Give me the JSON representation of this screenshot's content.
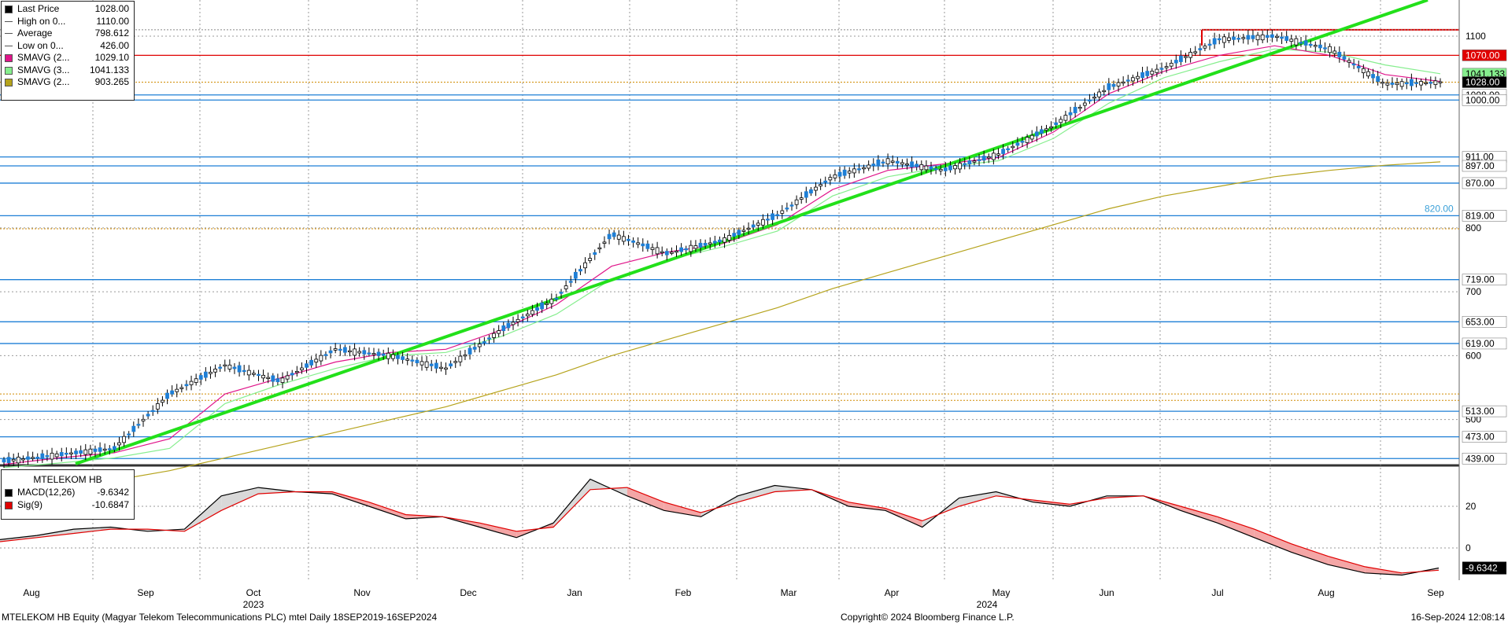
{
  "legend_main": [
    {
      "label": "Last Price",
      "value": "1028.00",
      "color": "#000000",
      "kind": "box"
    },
    {
      "label": "High on 0...",
      "value": "1110.00",
      "color": "#000000",
      "kind": "high"
    },
    {
      "label": "Average",
      "value": "798.612",
      "color": "#000000",
      "kind": "avg"
    },
    {
      "label": "Low on 0...",
      "value": "426.00",
      "color": "#000000",
      "kind": "low"
    },
    {
      "label": "SMAVG (2...",
      "value": "1029.10",
      "color": "#e0158a",
      "kind": "box"
    },
    {
      "label": "SMAVG (3...",
      "value": "1041.133",
      "color": "#86ee8e",
      "kind": "box"
    },
    {
      "label": "SMAVG (2...",
      "value": "903.265",
      "color": "#b5a31c",
      "kind": "box"
    }
  ],
  "legend_macd": {
    "title": "MTELEKOM HB",
    "rows": [
      {
        "label": "MACD(12,26)",
        "value": "-9.6342",
        "color": "#000000"
      },
      {
        "label": "Sig(9)",
        "value": "-10.6847",
        "color": "#e00000"
      }
    ]
  },
  "footer": {
    "left": "MTELEKOM HB Equity (Magyar Telekom Telecommunications PLC) mtel  Daily 18SEP2019-16SEP2024",
    "center": "Copyright© 2024 Bloomberg Finance L.P.",
    "right": "16-Sep-2024 12:08:14"
  },
  "chart_data": [
    {
      "type": "candlestick",
      "title": "",
      "x_tick_labels": [
        "Aug",
        "Sep",
        "Oct",
        "Nov",
        "Dec",
        "Jan",
        "Feb",
        "Mar",
        "Apr",
        "May",
        "Jun",
        "Jul",
        "Aug",
        "Sep"
      ],
      "x_year_labels": [
        {
          "label": "2023",
          "near": "Oct"
        },
        {
          "label": "2024",
          "near": "May"
        }
      ],
      "y_tick_labels": [
        "1100",
        "800",
        "700",
        "600",
        "500"
      ],
      "ylim": [
        420,
        1150
      ],
      "price_tags": [
        {
          "value": 1070.0,
          "label": "1070.00",
          "bg": "#e00000",
          "fg": "#ffffff"
        },
        {
          "value": 1041.133,
          "label": "1041.133",
          "bg": "#86ee8e",
          "fg": "#000000"
        },
        {
          "value": 1028.0,
          "label": "1028.00",
          "bg": "#000000",
          "fg": "#ffffff"
        },
        {
          "value": 1008.0,
          "label": "1008.00",
          "bg": "#ffffff",
          "fg": "#000000"
        },
        {
          "value": 1000.0,
          "label": "1000.00",
          "bg": "#ffffff",
          "fg": "#000000"
        },
        {
          "value": 911.0,
          "label": "911.00",
          "bg": "#ffffff",
          "fg": "#000000"
        },
        {
          "value": 897.0,
          "label": "897.00",
          "bg": "#ffffff",
          "fg": "#000000"
        },
        {
          "value": 870.0,
          "label": "870.00",
          "bg": "#ffffff",
          "fg": "#000000"
        },
        {
          "value": 819.0,
          "label": "819.00",
          "bg": "#ffffff",
          "fg": "#000000"
        },
        {
          "value": 719.0,
          "label": "719.00",
          "bg": "#ffffff",
          "fg": "#000000"
        },
        {
          "value": 653.0,
          "label": "653.00",
          "bg": "#ffffff",
          "fg": "#000000"
        },
        {
          "value": 619.0,
          "label": "619.00",
          "bg": "#ffffff",
          "fg": "#000000"
        },
        {
          "value": 513.0,
          "label": "513.00",
          "bg": "#ffffff",
          "fg": "#000000"
        },
        {
          "value": 473.0,
          "label": "473.00",
          "bg": "#ffffff",
          "fg": "#000000"
        },
        {
          "value": 439.0,
          "label": "439.00",
          "bg": "#ffffff",
          "fg": "#000000"
        }
      ],
      "annotation": {
        "label": "820.00",
        "value": 820.0,
        "color": "#3aa0d8"
      },
      "horizontal_lines": [
        {
          "value": 1070,
          "color": "#e00000"
        },
        {
          "value": 1008,
          "color": "#1e7fd6"
        },
        {
          "value": 1000,
          "color": "#1e7fd6"
        },
        {
          "value": 911,
          "color": "#1e7fd6"
        },
        {
          "value": 897,
          "color": "#1e7fd6"
        },
        {
          "value": 870,
          "color": "#1e7fd6"
        },
        {
          "value": 819,
          "color": "#1e7fd6"
        },
        {
          "value": 719,
          "color": "#1e7fd6"
        },
        {
          "value": 653,
          "color": "#1e7fd6"
        },
        {
          "value": 619,
          "color": "#1e7fd6"
        },
        {
          "value": 513,
          "color": "#1e7fd6"
        },
        {
          "value": 473,
          "color": "#1e7fd6"
        },
        {
          "value": 439,
          "color": "#1e7fd6"
        }
      ],
      "dotted_levels": [
        {
          "value": 1110,
          "color": "#888888"
        },
        {
          "value": 1028,
          "color": "#d08a00"
        },
        {
          "value": 798.612,
          "color": "#d08a00"
        },
        {
          "value": 540,
          "color": "#d08a00"
        },
        {
          "value": 530,
          "color": "#d08a00"
        }
      ],
      "resistance_segment": {
        "from": "Jun end",
        "to": "Sep",
        "value": 1110,
        "color": "#e00000"
      },
      "trendline": {
        "color": "#22e01a",
        "from": {
          "x": "Aug 2023",
          "y": 400
        },
        "to": {
          "x": "Sep 2024",
          "y": 1170
        }
      },
      "price_series": {
        "name": "Last Price",
        "dates": [
          "Jul",
          "Aug",
          "Sep",
          "Sep",
          "Oct",
          "Oct",
          "Nov",
          "Nov",
          "Dec",
          "Dec",
          "Jan",
          "Jan",
          "Feb",
          "Feb",
          "Mar",
          "Mar",
          "Apr",
          "Apr",
          "May",
          "May",
          "Jun",
          "Jun",
          "Jul",
          "Jul",
          "Aug",
          "Aug",
          "Sep"
        ],
        "values": [
          435,
          445,
          455,
          540,
          585,
          560,
          610,
          600,
          580,
          640,
          690,
          790,
          760,
          780,
          820,
          880,
          905,
          890,
          915,
          960,
          1020,
          1050,
          1095,
          1100,
          1080,
          1025,
          1028
        ]
      },
      "sma_short": {
        "name": "SMAVG (2...",
        "color": "#e0158a",
        "values": [
          430,
          440,
          448,
          470,
          540,
          565,
          590,
          605,
          610,
          640,
          680,
          740,
          762,
          775,
          805,
          860,
          890,
          900,
          910,
          950,
          1010,
          1045,
          1070,
          1085,
          1070,
          1040,
          1029.1
        ]
      },
      "sma_mid": {
        "name": "SMAVG (3...",
        "color": "#86ee8e",
        "values": [
          425,
          432,
          440,
          455,
          525,
          555,
          580,
          600,
          605,
          630,
          665,
          720,
          750,
          770,
          795,
          850,
          880,
          895,
          905,
          940,
          995,
          1035,
          1060,
          1080,
          1075,
          1055,
          1041.133
        ]
      },
      "sma_long": {
        "name": "SMAVG (2...",
        "color": "#b5a31c",
        "values": [
          385,
          395,
          405,
          420,
          440,
          460,
          480,
          500,
          520,
          545,
          570,
          600,
          625,
          650,
          675,
          705,
          730,
          755,
          780,
          805,
          830,
          850,
          865,
          880,
          890,
          898,
          903.265
        ]
      }
    },
    {
      "type": "line",
      "title": "MTELEKOM HB",
      "y_tick_labels": [
        "20",
        "0"
      ],
      "ylim": [
        -15,
        40
      ],
      "price_tag": {
        "value": -9.6342,
        "label": "-9.6342"
      },
      "series": [
        {
          "name": "MACD(12,26)",
          "color": "#000000",
          "values": [
            4,
            6,
            9,
            10,
            8,
            9,
            25,
            29,
            27,
            26,
            20,
            14,
            15,
            10,
            5,
            12,
            33,
            25,
            18,
            15,
            25,
            30,
            28,
            20,
            18,
            10,
            24,
            27,
            22,
            20,
            25,
            25,
            18,
            12,
            5,
            -2,
            -8,
            -12,
            -13,
            -9.6342
          ]
        },
        {
          "name": "Sig(9)",
          "color": "#e00000",
          "values": [
            3,
            5,
            7,
            9,
            9,
            8,
            18,
            26,
            27,
            27,
            22,
            16,
            15,
            12,
            8,
            10,
            28,
            29,
            22,
            17,
            22,
            27,
            28,
            22,
            19,
            13,
            20,
            25,
            23,
            21,
            24,
            25,
            20,
            15,
            9,
            2,
            -4,
            -9,
            -12,
            -10.6847
          ]
        }
      ]
    }
  ]
}
